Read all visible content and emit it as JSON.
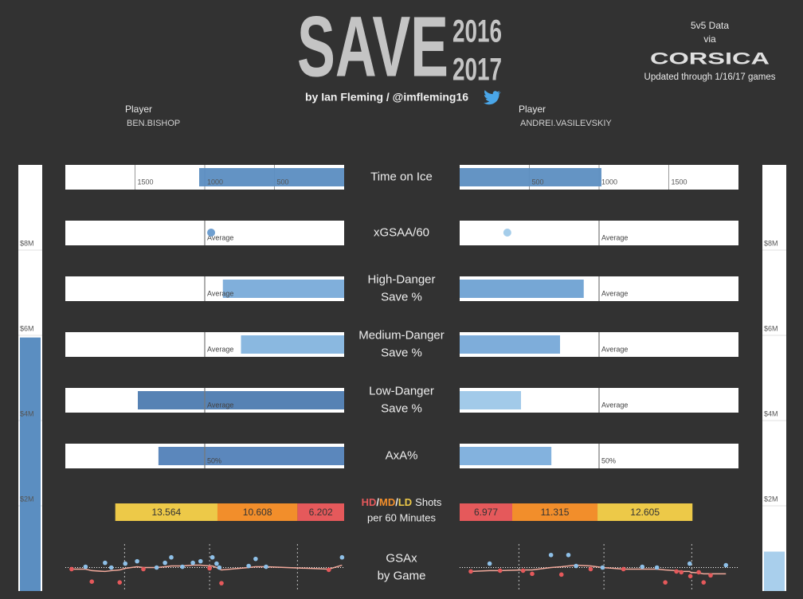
{
  "header": {
    "title": "SAVE",
    "season_top": "2016",
    "season_bottom": "2017",
    "byline": "by Ian Fleming / @imfleming16",
    "source_line1": "5v5 Data",
    "source_line2": "via",
    "source_brand": "CORSICA",
    "updated": "Updated through 1/16/17 games"
  },
  "players": [
    {
      "label": "Player",
      "name": "BEN.BISHOP"
    },
    {
      "label": "Player",
      "name": "ANDREI.VASILEVSKIY"
    }
  ],
  "chart_data": [
    {
      "type": "mirrored-bar",
      "title": [
        "Time on Ice"
      ],
      "xlim": [
        0,
        2000
      ],
      "xticks": [
        500,
        1000,
        1500
      ],
      "values": [
        1040,
        1017
      ],
      "colors": [
        "#5b8dc1",
        "#5c8ec1"
      ]
    },
    {
      "type": "mirrored-dot",
      "title": [
        "xGSAA/60"
      ],
      "xlim": [
        -0.5,
        0.5
      ],
      "reference": {
        "value": 0,
        "label": "Average"
      },
      "values": [
        -0.023,
        -0.329
      ],
      "colors": [
        "#6f9fd0",
        "#a5cdea"
      ]
    },
    {
      "type": "mirrored-bar",
      "title": [
        "High-Danger",
        "Save %"
      ],
      "xlim": [
        0.72,
        0.92
      ],
      "reference": {
        "value": 0.82,
        "label": "Average"
      },
      "values": [
        0.807,
        0.809
      ],
      "colors": [
        "#79abd9",
        "#6fa2d3"
      ]
    },
    {
      "type": "mirrored-bar",
      "title": [
        "Medium-Danger",
        "Save %"
      ],
      "xlim": [
        0.86,
        0.96
      ],
      "reference": {
        "value": 0.91,
        "label": "Average"
      },
      "values": [
        0.897,
        0.896
      ],
      "colors": [
        "#84b4de",
        "#77a9d8"
      ]
    },
    {
      "type": "mirrored-bar",
      "title": [
        "Low-Danger",
        "Save %"
      ],
      "xlim": [
        0.95,
        1.0
      ],
      "reference": {
        "value": 0.975,
        "label": "Average"
      },
      "values": [
        0.987,
        0.961
      ],
      "colors": [
        "#4d7bb0",
        "#9dc7e8"
      ]
    },
    {
      "type": "mirrored-bar",
      "title": [
        "AxA%"
      ],
      "xlim": [
        0,
        100
      ],
      "reference": {
        "value": 50,
        "label": "50%"
      },
      "values": [
        66.6,
        32.9
      ],
      "colors": [
        "#5281b8",
        "#7caedc"
      ]
    },
    {
      "type": "stacked-bar",
      "separator": "/",
      "title_rest": "Shots",
      "title_line2": "per 60 Minutes",
      "xlim": [
        0,
        37
      ],
      "series": [
        {
          "name": "HD",
          "color": "#e5595b",
          "values": [
            6.202,
            6.977
          ]
        },
        {
          "name": "MD",
          "color": "#f28e2b",
          "values": [
            10.608,
            11.315
          ]
        },
        {
          "name": "LD",
          "color": "#edc948",
          "values": [
            13.564,
            12.605
          ]
        }
      ]
    },
    {
      "type": "scatter",
      "title": [
        "GSAx",
        "by Game"
      ],
      "xlim": [
        0,
        40
      ],
      "ylim": [
        -3,
        3
      ],
      "reference_lines": [
        8.5,
        20.7,
        33.3
      ],
      "pos_color": "#8ec0e8",
      "neg_color": "#e5595b",
      "trend_color": "#f1a99b",
      "panels": [
        {
          "x": [
            0.9,
            2.9,
            3.8,
            5.7,
            6.6,
            7.8,
            8.6,
            10.3,
            11.2,
            13.1,
            14.3,
            15.2,
            16.8,
            18.3,
            19.4,
            20.7,
            21.1,
            21.7,
            22.1,
            22.4,
            26.3,
            27.3,
            28.8,
            37.8,
            39.7
          ],
          "y": [
            -0.2,
            0.1,
            -1.8,
            0.6,
            0.0,
            -1.9,
            0.5,
            0.8,
            -0.2,
            0.0,
            0.6,
            1.3,
            0.1,
            0.6,
            0.8,
            -0.1,
            1.3,
            0.5,
            0.0,
            -2.0,
            0.2,
            1.1,
            0.1,
            -0.3,
            1.3
          ],
          "trend": [
            -0.2,
            -0.2,
            -0.4,
            -0.5,
            -0.4,
            -0.3,
            -0.1,
            0.1,
            0.0,
            0.0,
            0.1,
            0.2,
            0.2,
            0.3,
            0.3,
            0.2,
            0.2,
            0.0,
            -0.2,
            -0.3,
            0.0,
            0.1,
            0.1,
            -0.2,
            0.3
          ]
        },
        {
          "x": [
            1.6,
            4.3,
            5.8,
            9.1,
            10.4,
            13.1,
            14.6,
            15.6,
            16.7,
            18.8,
            20.5,
            23.5,
            26.2,
            28.3,
            29.5,
            31.1,
            31.8,
            33.0,
            33.1,
            34.3,
            35.0,
            36.0,
            38.2
          ],
          "y": [
            -0.5,
            0.5,
            -0.4,
            -0.4,
            -0.8,
            1.6,
            -0.9,
            1.6,
            0.2,
            -0.2,
            0.0,
            -0.2,
            0.1,
            0.0,
            -1.9,
            -0.5,
            -0.6,
            0.5,
            -1.1,
            -0.6,
            -1.9,
            -1.0,
            0.3
          ],
          "trend": [
            -0.5,
            -0.4,
            -0.4,
            -0.3,
            -0.3,
            0.0,
            0.1,
            0.2,
            0.3,
            0.2,
            0.0,
            -0.2,
            -0.2,
            -0.2,
            -0.3,
            -0.4,
            -0.5,
            -0.5,
            -0.6,
            -0.7,
            -0.8,
            -0.8,
            -0.8
          ]
        }
      ]
    },
    {
      "type": "bar",
      "title": null,
      "ylim": [
        0,
        10
      ],
      "yticks": [
        {
          "value": 2,
          "label": "$2M"
        },
        {
          "value": 4,
          "label": "$4M"
        },
        {
          "value": 6,
          "label": "$6M"
        },
        {
          "value": 8,
          "label": "$8M"
        }
      ],
      "values": [
        5.95,
        0.925
      ],
      "colors": [
        "#5b8ec1",
        "#a9cfec"
      ]
    }
  ]
}
